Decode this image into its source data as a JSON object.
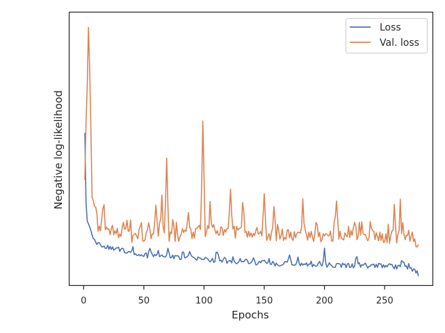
{
  "chart_data": {
    "type": "line",
    "xlabel": "Epochs",
    "ylabel": "Negative log-likelihood",
    "xlim": [
      -12,
      290
    ],
    "ylim": [
      0.85,
      3.18
    ],
    "xticks": [
      0,
      50,
      100,
      150,
      200,
      250
    ],
    "x_start": 1,
    "yticks_visible": false,
    "grid": false,
    "legend_position": "top-right",
    "series": [
      {
        "name": "Loss",
        "color": "#4c72b0",
        "key_points": [
          [
            1,
            2.15
          ],
          [
            2,
            1.55
          ],
          [
            3,
            1.4
          ],
          [
            5,
            1.35
          ],
          [
            8,
            1.25
          ],
          [
            12,
            1.2
          ],
          [
            20,
            1.17
          ],
          [
            30,
            1.15
          ],
          [
            50,
            1.1
          ],
          [
            80,
            1.08
          ],
          [
            120,
            1.05
          ],
          [
            160,
            1.03
          ],
          [
            200,
            1.02
          ],
          [
            240,
            1.01
          ],
          [
            270,
            1.0
          ],
          [
            278,
            0.93
          ]
        ],
        "noise": 0.025,
        "spikes": [
          [
            55,
            0.08
          ],
          [
            70,
            0.06
          ],
          [
            88,
            0.07
          ],
          [
            111,
            0.07
          ],
          [
            171,
            0.09
          ],
          [
            200,
            0.11
          ],
          [
            227,
            0.08
          ],
          [
            265,
            0.06
          ]
        ]
      },
      {
        "name": "Val. loss",
        "color": "#dd8452",
        "key_points": [
          [
            1,
            1.75
          ],
          [
            2,
            2.25
          ],
          [
            3,
            2.55
          ],
          [
            4,
            3.05
          ],
          [
            5,
            2.7
          ],
          [
            6,
            2.2
          ],
          [
            7,
            1.6
          ],
          [
            9,
            1.55
          ],
          [
            12,
            1.35
          ],
          [
            20,
            1.3
          ],
          [
            40,
            1.25
          ],
          [
            60,
            1.27
          ],
          [
            80,
            1.26
          ],
          [
            100,
            1.3
          ],
          [
            130,
            1.28
          ],
          [
            160,
            1.27
          ],
          [
            200,
            1.26
          ],
          [
            240,
            1.24
          ],
          [
            270,
            1.25
          ],
          [
            278,
            1.2
          ]
        ],
        "noise": 0.07,
        "spikes": [
          [
            16,
            0.15
          ],
          [
            33,
            0.15
          ],
          [
            60,
            0.3
          ],
          [
            65,
            0.32
          ],
          [
            69,
            0.65
          ],
          [
            74,
            0.15
          ],
          [
            87,
            0.2
          ],
          [
            99,
            0.98
          ],
          [
            105,
            0.2
          ],
          [
            122,
            0.35
          ],
          [
            132,
            0.25
          ],
          [
            150,
            0.34
          ],
          [
            158,
            0.22
          ],
          [
            182,
            0.3
          ],
          [
            193,
            0.1
          ],
          [
            210,
            0.28
          ],
          [
            225,
            0.16
          ],
          [
            239,
            0.13
          ],
          [
            258,
            0.3
          ],
          [
            263,
            0.22
          ]
        ]
      }
    ]
  }
}
